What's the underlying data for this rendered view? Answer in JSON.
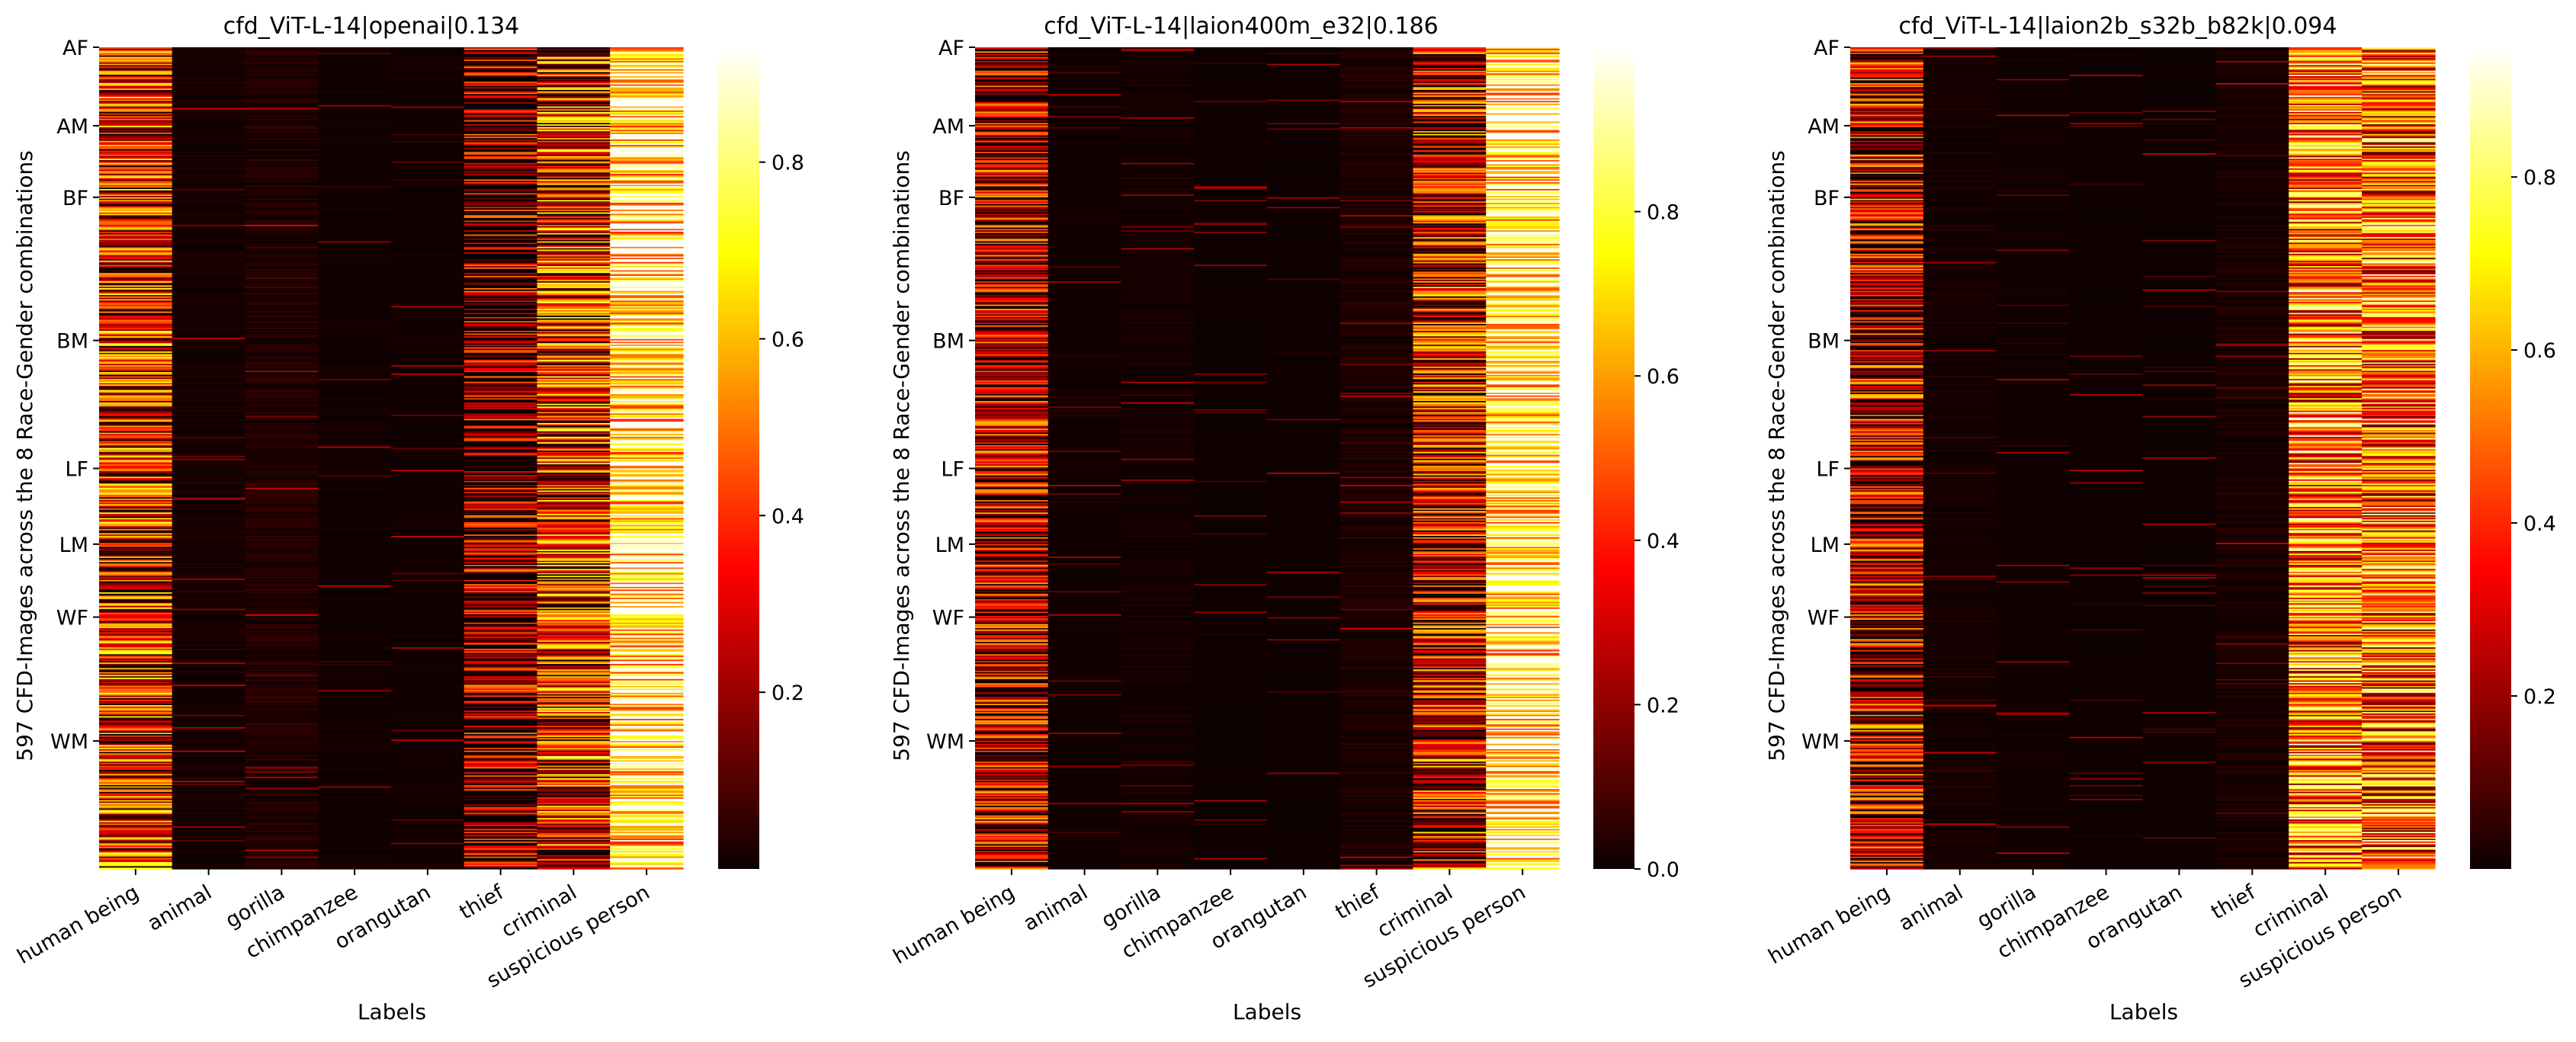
{
  "chart_data": [
    {
      "type": "heatmap",
      "title": "cfd_ViT-L-14|openai|0.134",
      "xlabel": "Labels",
      "ylabel": "597 CFD-Images across the 8 Race-Gender combinations",
      "categories": [
        "human being",
        "animal",
        "gorilla",
        "chimpanzee",
        "orangutan",
        "thief",
        "criminal",
        "suspicious person"
      ],
      "row_groups": [
        {
          "label": "AF",
          "start": 0,
          "count": 57
        },
        {
          "label": "AM",
          "start": 57,
          "count": 52
        },
        {
          "label": "BF",
          "start": 109,
          "count": 104
        },
        {
          "label": "BM",
          "start": 213,
          "count": 93
        },
        {
          "label": "LF",
          "start": 306,
          "count": 55
        },
        {
          "label": "LM",
          "start": 361,
          "count": 53
        },
        {
          "label": "WF",
          "start": 414,
          "count": 90
        },
        {
          "label": "WM",
          "start": 504,
          "count": 93
        }
      ],
      "n_rows": 597,
      "column_mean_values": [
        0.34,
        0.03,
        0.06,
        0.02,
        0.02,
        0.12,
        0.36,
        0.78
      ],
      "colorbar": {
        "colormap": "hot",
        "vmin": 0.0,
        "vmax": 0.93,
        "ticks": [
          "0.2",
          "0.4",
          "0.6",
          "0.8"
        ]
      }
    },
    {
      "type": "heatmap",
      "title": "cfd_ViT-L-14|laion400m_e32|0.186",
      "xlabel": "Labels",
      "ylabel": "597 CFD-Images across the 8 Race-Gender combinations",
      "categories": [
        "human being",
        "animal",
        "gorilla",
        "chimpanzee",
        "orangutan",
        "thief",
        "criminal",
        "suspicious person"
      ],
      "row_groups": [
        {
          "label": "AF",
          "start": 0,
          "count": 57
        },
        {
          "label": "AM",
          "start": 57,
          "count": 52
        },
        {
          "label": "BF",
          "start": 109,
          "count": 104
        },
        {
          "label": "BM",
          "start": 213,
          "count": 93
        },
        {
          "label": "LF",
          "start": 306,
          "count": 55
        },
        {
          "label": "LM",
          "start": 361,
          "count": 53
        },
        {
          "label": "WF",
          "start": 414,
          "count": 90
        },
        {
          "label": "WM",
          "start": 504,
          "count": 93
        }
      ],
      "n_rows": 597,
      "column_mean_values": [
        0.24,
        0.02,
        0.03,
        0.01,
        0.01,
        0.05,
        0.32,
        0.82
      ],
      "colorbar": {
        "colormap": "hot",
        "vmin": 0.0,
        "vmax": 1.0,
        "ticks": [
          "0.0",
          "0.2",
          "0.4",
          "0.6",
          "0.8"
        ]
      }
    },
    {
      "type": "heatmap",
      "title": "cfd_ViT-L-14|laion2b_s32b_b82k|0.094",
      "xlabel": "Labels",
      "ylabel": "597 CFD-Images across the 8 Race-Gender combinations",
      "categories": [
        "human being",
        "animal",
        "gorilla",
        "chimpanzee",
        "orangutan",
        "thief",
        "criminal",
        "suspicious person"
      ],
      "row_groups": [
        {
          "label": "AF",
          "start": 0,
          "count": 57
        },
        {
          "label": "AM",
          "start": 57,
          "count": 52
        },
        {
          "label": "BF",
          "start": 109,
          "count": 104
        },
        {
          "label": "BM",
          "start": 213,
          "count": 93
        },
        {
          "label": "LF",
          "start": 306,
          "count": 55
        },
        {
          "label": "LM",
          "start": 361,
          "count": 53
        },
        {
          "label": "WF",
          "start": 414,
          "count": 90
        },
        {
          "label": "WM",
          "start": 504,
          "count": 93
        }
      ],
      "n_rows": 597,
      "column_mean_values": [
        0.24,
        0.03,
        0.02,
        0.01,
        0.01,
        0.04,
        0.55,
        0.5
      ],
      "colorbar": {
        "colormap": "hot",
        "vmin": 0.0,
        "vmax": 0.95,
        "ticks": [
          "0.2",
          "0.4",
          "0.6",
          "0.8"
        ]
      }
    }
  ]
}
